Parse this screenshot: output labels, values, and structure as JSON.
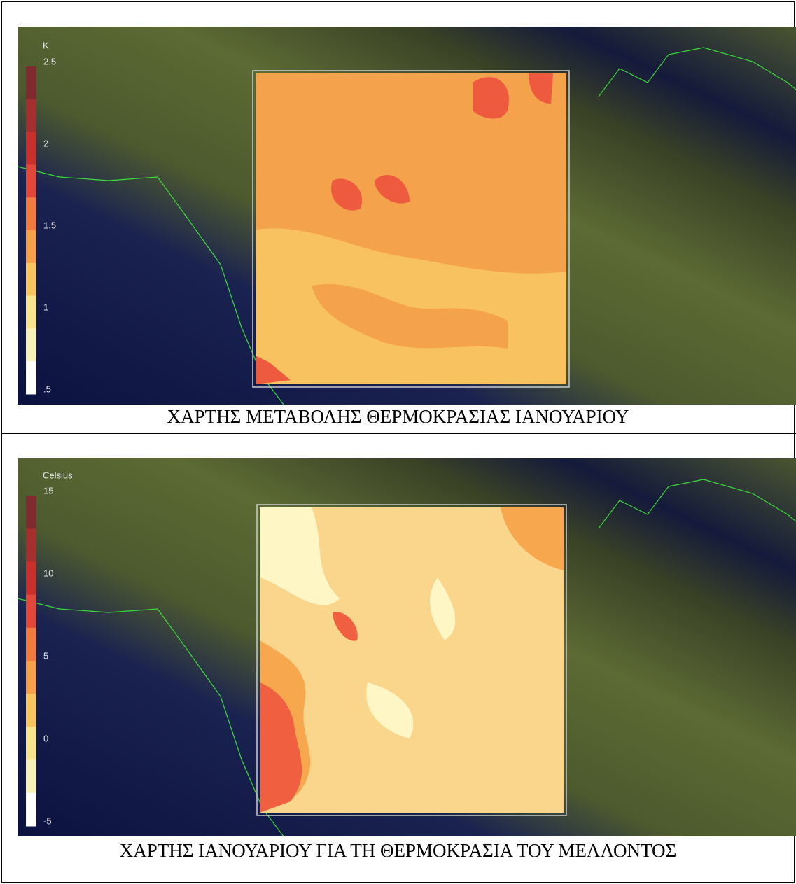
{
  "panels": [
    {
      "legend": {
        "unit": "K",
        "labels": [
          "2.5",
          "2",
          "1.5",
          "1",
          ".5"
        ]
      },
      "caption": "ΧΑΡΤΗΣ ΜΕΤΑΒΟΛΗΣ ΘΕΡΜΟΚΡΑΣΙΑΣ ΙΑΝΟΥΑΡΙΟΥ"
    },
    {
      "legend": {
        "unit": "Celsius",
        "labels": [
          "15",
          "10",
          "5",
          "0",
          "-5"
        ]
      },
      "caption": "ΧΑΡΤΗΣ ΙΑΝΟΥΑΡΙΟΥ ΓΙΑ ΤΗ ΘΕΡΜΟΚΡΑΣΙΑ ΤΟΥ ΜΕΛΛΟΝΤΟΣ"
    }
  ]
}
